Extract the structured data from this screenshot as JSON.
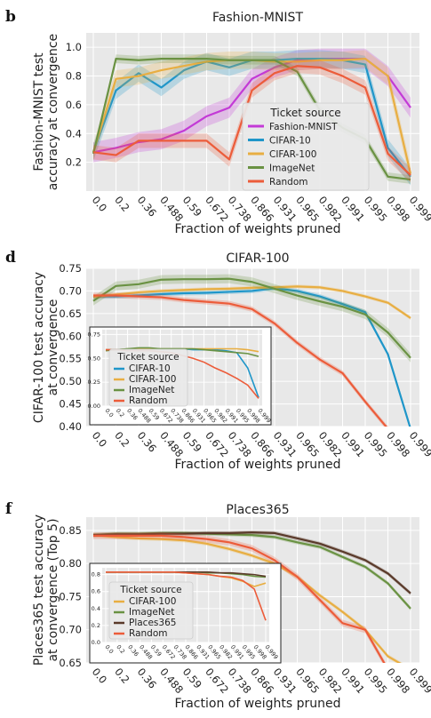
{
  "colors": {
    "Fashion-MNIST": "#c33ad6",
    "CIFAR-10": "#1f96c9",
    "CIFAR-100": "#e8ae42",
    "ImageNet": "#6a9243",
    "Random": "#ec5c3a",
    "Places365": "#5a3a2a"
  },
  "x_tick_labels": [
    "0.0",
    "0.2",
    "0.36",
    "0.488",
    "0.59",
    "0.672",
    "0.738",
    "0.866",
    "0.931",
    "0.965",
    "0.982",
    "0.991",
    "0.995",
    "0.998",
    "0.999"
  ],
  "chart_data": [
    {
      "panel_letter": "b",
      "type": "line",
      "title": "Fashion-MNIST",
      "xlabel": "Fraction of weights pruned",
      "ylabel": [
        "Fashion-MNIST test",
        "accuracy at convergence"
      ],
      "ylim": [
        0.0,
        1.1
      ],
      "yticks": [
        "1.0",
        "0.8",
        "0.6",
        "0.4",
        "0.2"
      ],
      "ytick_values": [
        1.0,
        0.8,
        0.6,
        0.4,
        0.2
      ],
      "legend_title": "Ticket source",
      "legend": [
        "Fashion-MNIST",
        "CIFAR-10",
        "CIFAR-100",
        "ImageNet",
        "Random"
      ],
      "legend_position": "lower-right",
      "grid": true,
      "x": [
        "0.0",
        "0.2",
        "0.36",
        "0.488",
        "0.59",
        "0.672",
        "0.738",
        "0.866",
        "0.931",
        "0.965",
        "0.982",
        "0.991",
        "0.995",
        "0.998",
        "0.999"
      ],
      "series": [
        {
          "name": "Fashion-MNIST",
          "values": [
            0.27,
            0.3,
            0.34,
            0.36,
            0.42,
            0.52,
            0.58,
            0.78,
            0.86,
            0.91,
            0.92,
            0.92,
            0.92,
            0.8,
            0.58
          ],
          "band": 0.07
        },
        {
          "name": "CIFAR-10",
          "values": [
            0.27,
            0.7,
            0.82,
            0.72,
            0.84,
            0.9,
            0.86,
            0.91,
            0.91,
            0.92,
            0.92,
            0.91,
            0.88,
            0.3,
            0.1
          ],
          "band": 0.06
        },
        {
          "name": "CIFAR-100",
          "values": [
            0.27,
            0.78,
            0.8,
            0.84,
            0.87,
            0.9,
            0.91,
            0.91,
            0.9,
            0.9,
            0.91,
            0.91,
            0.92,
            0.8,
            0.12
          ],
          "band": 0.06
        },
        {
          "name": "ImageNet",
          "values": [
            0.26,
            0.92,
            0.91,
            0.92,
            0.92,
            0.92,
            0.91,
            0.91,
            0.91,
            0.83,
            0.56,
            0.44,
            0.36,
            0.1,
            0.08
          ],
          "band": 0.03
        },
        {
          "name": "Random",
          "values": [
            0.27,
            0.25,
            0.35,
            0.35,
            0.35,
            0.35,
            0.22,
            0.7,
            0.82,
            0.87,
            0.86,
            0.8,
            0.72,
            0.26,
            0.11
          ],
          "band": 0.05
        }
      ]
    },
    {
      "panel_letter": "d",
      "type": "line",
      "title": "CIFAR-100",
      "xlabel": "Fraction of weights pruned",
      "ylabel": [
        "CIFAR-100 test accuracy",
        "at convergence"
      ],
      "ylim": [
        0.4,
        0.75
      ],
      "yticks": [
        "0.75",
        "0.70",
        "0.65",
        "0.60",
        "0.55",
        "0.50",
        "0.45",
        "0.40"
      ],
      "ytick_values": [
        0.75,
        0.7,
        0.65,
        0.6,
        0.55,
        0.5,
        0.45,
        0.4
      ],
      "legend_title": "Ticket source",
      "legend": [
        "CIFAR-10",
        "CIFAR-100",
        "ImageNet",
        "Random"
      ],
      "legend_position": "inset lower-left",
      "grid": true,
      "x": [
        "0.0",
        "0.2",
        "0.36",
        "0.488",
        "0.59",
        "0.672",
        "0.738",
        "0.866",
        "0.931",
        "0.965",
        "0.982",
        "0.991",
        "0.995",
        "0.998",
        "0.999"
      ],
      "series": [
        {
          "name": "CIFAR-10",
          "values": [
            0.687,
            0.688,
            0.69,
            0.693,
            0.695,
            0.696,
            0.698,
            0.7,
            0.706,
            0.7,
            0.688,
            0.671,
            0.653,
            0.56,
            0.395
          ],
          "band": 0.005
        },
        {
          "name": "CIFAR-100",
          "values": [
            0.687,
            0.692,
            0.697,
            0.7,
            0.702,
            0.704,
            0.705,
            0.707,
            0.708,
            0.71,
            0.708,
            0.7,
            0.688,
            0.674,
            0.64
          ],
          "band": 0.004
        },
        {
          "name": "ImageNet",
          "values": [
            0.678,
            0.711,
            0.715,
            0.725,
            0.726,
            0.726,
            0.727,
            0.72,
            0.705,
            0.69,
            0.677,
            0.665,
            0.648,
            0.608,
            0.552
          ],
          "band": 0.01
        },
        {
          "name": "Random",
          "values": [
            0.69,
            0.69,
            0.688,
            0.686,
            0.68,
            0.676,
            0.672,
            0.66,
            0.628,
            0.585,
            0.548,
            0.518,
            0.455,
            0.395,
            0.38
          ],
          "band": 0.006
        }
      ],
      "inset": {
        "yticks": [
          "0.75",
          "0.50",
          "0.25",
          "0.00"
        ],
        "ylim": [
          0.0,
          0.8
        ],
        "series": [
          {
            "name": "CIFAR-10",
            "values": [
              0.59,
              0.59,
              0.6,
              0.6,
              0.6,
              0.6,
              0.6,
              0.6,
              0.59,
              0.59,
              0.59,
              0.58,
              0.56,
              0.4,
              0.09
            ]
          },
          {
            "name": "CIFAR-100",
            "values": [
              0.59,
              0.59,
              0.6,
              0.6,
              0.6,
              0.6,
              0.6,
              0.6,
              0.6,
              0.6,
              0.6,
              0.6,
              0.6,
              0.59,
              0.57
            ]
          },
          {
            "name": "ImageNet",
            "values": [
              0.58,
              0.59,
              0.6,
              0.61,
              0.61,
              0.6,
              0.6,
              0.6,
              0.6,
              0.59,
              0.58,
              0.57,
              0.56,
              0.55,
              0.52
            ]
          },
          {
            "name": "Random",
            "values": [
              0.59,
              0.59,
              0.58,
              0.58,
              0.58,
              0.57,
              0.56,
              0.53,
              0.5,
              0.46,
              0.4,
              0.35,
              0.29,
              0.22,
              0.08
            ]
          }
        ]
      }
    },
    {
      "panel_letter": "f",
      "type": "line",
      "title": "Places365",
      "xlabel": "Fraction of weights pruned",
      "ylabel": [
        "Places365 test accuracy",
        "at convergence (Top 5)"
      ],
      "ylim": [
        0.65,
        0.87
      ],
      "yticks": [
        "0.85",
        "0.80",
        "0.75",
        "0.70",
        "0.65"
      ],
      "ytick_values": [
        0.85,
        0.8,
        0.75,
        0.7,
        0.65
      ],
      "legend_title": "Ticket source",
      "legend": [
        "CIFAR-100",
        "ImageNet",
        "Places365",
        "Random"
      ],
      "legend_position": "inset lower-left",
      "grid": true,
      "x": [
        "0.0",
        "0.2",
        "0.36",
        "0.488",
        "0.59",
        "0.672",
        "0.738",
        "0.866",
        "0.931",
        "0.965",
        "0.982",
        "0.991",
        "0.995",
        "0.998",
        "0.999"
      ],
      "series": [
        {
          "name": "CIFAR-100",
          "values": [
            0.843,
            0.84,
            0.838,
            0.837,
            0.835,
            0.83,
            0.822,
            0.812,
            0.8,
            0.78,
            0.752,
            0.727,
            0.7,
            0.66,
            0.64
          ],
          "band": 0.003
        },
        {
          "name": "ImageNet",
          "values": [
            0.843,
            0.845,
            0.845,
            0.846,
            0.846,
            0.845,
            0.844,
            0.843,
            0.84,
            0.832,
            0.825,
            0.81,
            0.795,
            0.77,
            0.732
          ],
          "band": 0.003
        },
        {
          "name": "Places365",
          "values": [
            0.843,
            0.844,
            0.844,
            0.845,
            0.845,
            0.846,
            0.846,
            0.847,
            0.846,
            0.838,
            0.83,
            0.818,
            0.805,
            0.785,
            0.755
          ],
          "band": 0.003
        },
        {
          "name": "Random",
          "values": [
            0.842,
            0.842,
            0.842,
            0.842,
            0.84,
            0.837,
            0.832,
            0.823,
            0.805,
            0.78,
            0.745,
            0.71,
            0.7,
            0.64,
            0.63
          ],
          "band": 0.005
        }
      ],
      "inset": {
        "yticks": [
          "0.8",
          "0.6",
          "0.4",
          "0.2",
          "0.0"
        ],
        "ylim": [
          0.0,
          0.88
        ],
        "series": [
          {
            "name": "CIFAR-100",
            "values": [
              0.83,
              0.83,
              0.83,
              0.83,
              0.83,
              0.83,
              0.83,
              0.82,
              0.81,
              0.8,
              0.78,
              0.76,
              0.72,
              0.66,
              0.7
            ]
          },
          {
            "name": "ImageNet",
            "values": [
              0.83,
              0.83,
              0.83,
              0.83,
              0.83,
              0.83,
              0.83,
              0.83,
              0.83,
              0.82,
              0.82,
              0.81,
              0.8,
              0.78,
              0.77
            ]
          },
          {
            "name": "Places365",
            "values": [
              0.83,
              0.83,
              0.83,
              0.83,
              0.83,
              0.83,
              0.83,
              0.83,
              0.83,
              0.83,
              0.82,
              0.82,
              0.81,
              0.8,
              0.78
            ]
          },
          {
            "name": "Random",
            "values": [
              0.83,
              0.83,
              0.83,
              0.83,
              0.83,
              0.83,
              0.83,
              0.82,
              0.81,
              0.8,
              0.78,
              0.77,
              0.73,
              0.63,
              0.26
            ]
          }
        ]
      }
    }
  ]
}
